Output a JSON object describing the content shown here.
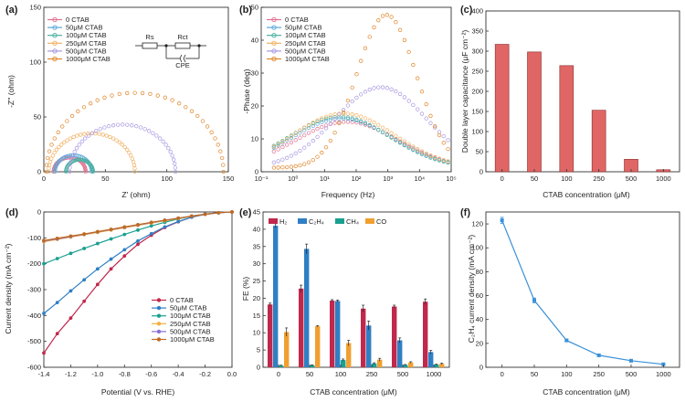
{
  "chart_data": [
    {
      "panel": "(a)",
      "type": "scatter",
      "xlabel": "Z' (ohm)",
      "ylabel": "-Z'' (ohm)",
      "xlim": [
        0,
        150
      ],
      "ylim": [
        0,
        150
      ],
      "xticks": [
        0,
        50,
        100,
        150
      ],
      "yticks": [
        0,
        50,
        100,
        150
      ],
      "inset_labels": [
        "Rs",
        "Rct",
        "CPE"
      ],
      "series": [
        {
          "name": "0 CTAB",
          "color": "#e07090",
          "center": 21,
          "radius": 13
        },
        {
          "name": "50μM CTAB",
          "color": "#5aa8d8",
          "center": 24,
          "radius": 15
        },
        {
          "name": "100μM CTAB",
          "color": "#4ab0a0",
          "center": 29,
          "radius": 11
        },
        {
          "name": "250μM CTAB",
          "color": "#f0b060",
          "center": 39,
          "radius": 35
        },
        {
          "name": "500μM CTAB",
          "color": "#a898e0",
          "center": 64,
          "radius": 43
        },
        {
          "name": "1000μM CTAB",
          "color": "#e0862a",
          "center": 74,
          "radius": 72
        }
      ]
    },
    {
      "panel": "(b)",
      "type": "scatter",
      "xlabel": "Frequency (Hz)",
      "ylabel": "-Phase (deg)",
      "xscale": "log",
      "xlim": [
        0.1,
        100000
      ],
      "ylim": [
        0,
        50
      ],
      "xticks": [
        "10⁻¹",
        "10⁰",
        "10¹",
        "10²",
        "10³",
        "10⁴",
        "10⁵"
      ],
      "yticks": [
        0,
        10,
        20,
        30,
        40,
        50
      ],
      "series": [
        {
          "name": "0 CTAB",
          "color": "#e07090",
          "peak_freq": 50,
          "peak_phase": 14
        },
        {
          "name": "50μM CTAB",
          "color": "#5aa8d8",
          "peak_freq": 35,
          "peak_phase": 15
        },
        {
          "name": "100μM CTAB",
          "color": "#4ab0a0",
          "peak_freq": 30,
          "peak_phase": 15.5
        },
        {
          "name": "250μM CTAB",
          "color": "#f0b060",
          "peak_freq": 40,
          "peak_phase": 16.5
        },
        {
          "name": "500μM CTAB",
          "color": "#a898e0",
          "peak_freq": 600,
          "peak_phase": 24.5
        },
        {
          "name": "1000μM CTAB",
          "color": "#e0862a",
          "peak_freq": 900,
          "peak_phase": 46.5
        }
      ]
    },
    {
      "panel": "(c)",
      "type": "bar",
      "xlabel": "CTAB concentration (μM)",
      "ylabel": "Double layer capacitance (μF cm⁻²)",
      "ylim": [
        0,
        400
      ],
      "yticks": [
        0,
        50,
        100,
        150,
        200,
        250,
        300,
        350,
        400
      ],
      "categories": [
        "0",
        "50",
        "100",
        "250",
        "500",
        "1000"
      ],
      "values": [
        317,
        298,
        264,
        153,
        31,
        5
      ],
      "color": "#e06666"
    },
    {
      "panel": "(d)",
      "type": "line",
      "xlabel": "Potential (V vs. RHE)",
      "ylabel": "Current density (mA cm⁻²)",
      "xlim": [
        -1.4,
        0.0
      ],
      "ylim": [
        -600,
        0
      ],
      "xticks": [
        -1.4,
        -1.2,
        -1.0,
        -0.8,
        -0.6,
        -0.4,
        -0.2,
        0.0
      ],
      "yticks": [
        0,
        -100,
        -200,
        -300,
        -400,
        -500,
        -600
      ],
      "series": [
        {
          "name": "0 CTAB",
          "color": "#c0284c",
          "x": [
            -1.4,
            -1.3,
            -1.2,
            -1.1,
            -1.0,
            -0.9,
            -0.8,
            -0.7,
            -0.6,
            -0.5,
            -0.4,
            -0.3,
            -0.2,
            -0.1,
            0.0
          ],
          "y": [
            -545,
            -470,
            -410,
            -345,
            -280,
            -220,
            -170,
            -125,
            -90,
            -60,
            -38,
            -20,
            -9,
            -3,
            0
          ]
        },
        {
          "name": "50μM CTAB",
          "color": "#2f7fc4",
          "x": [
            -1.4,
            -1.3,
            -1.2,
            -1.1,
            -1.0,
            -0.9,
            -0.8,
            -0.7,
            -0.6,
            -0.5,
            -0.4,
            -0.3,
            -0.2,
            -0.1,
            0.0
          ],
          "y": [
            -392,
            -350,
            -305,
            -262,
            -220,
            -182,
            -146,
            -112,
            -84,
            -58,
            -37,
            -20,
            -9,
            -3,
            0
          ]
        },
        {
          "name": "100μM CTAB",
          "color": "#1aa090",
          "x": [
            -1.4,
            -1.3,
            -1.2,
            -1.1,
            -1.0,
            -0.9,
            -0.8,
            -0.7,
            -0.6,
            -0.5,
            -0.4,
            -0.3,
            -0.2,
            -0.1,
            0.0
          ],
          "y": [
            -200,
            -180,
            -160,
            -141,
            -122,
            -104,
            -87,
            -70,
            -54,
            -40,
            -27,
            -16,
            -8,
            -3,
            0
          ]
        },
        {
          "name": "250μM CTAB",
          "color": "#f0b040",
          "x": [
            -1.4,
            -1.3,
            -1.2,
            -1.1,
            -1.0,
            -0.9,
            -0.8,
            -0.7,
            -0.6,
            -0.5,
            -0.4,
            -0.3,
            -0.2,
            -0.1,
            0.0
          ],
          "y": [
            -115,
            -106,
            -97,
            -88,
            -79,
            -70,
            -61,
            -52,
            -43,
            -34,
            -25,
            -16,
            -9,
            -3,
            0
          ]
        },
        {
          "name": "500μM CTAB",
          "color": "#8a70d0",
          "x": [
            -1.4,
            -1.3,
            -1.2,
            -1.1,
            -1.0,
            -0.9,
            -0.8,
            -0.7,
            -0.6,
            -0.5,
            -0.4,
            -0.3,
            -0.2,
            -0.1,
            0.0
          ],
          "y": [
            -112,
            -104,
            -95,
            -86,
            -77,
            -68,
            -59,
            -50,
            -41,
            -32,
            -24,
            -16,
            -9,
            -3,
            0
          ]
        },
        {
          "name": "1000μM CTAB",
          "color": "#c06a20",
          "x": [
            -1.4,
            -1.3,
            -1.2,
            -1.1,
            -1.0,
            -0.9,
            -0.8,
            -0.7,
            -0.6,
            -0.5,
            -0.4,
            -0.3,
            -0.2,
            -0.1,
            0.0
          ],
          "y": [
            -110,
            -102,
            -93,
            -85,
            -76,
            -67,
            -58,
            -49,
            -40,
            -32,
            -24,
            -16,
            -9,
            -3,
            0
          ]
        }
      ]
    },
    {
      "panel": "(e)",
      "type": "bar",
      "xlabel": "CTAB concentration (μM)",
      "ylabel": "FE (%)",
      "ylim": [
        0,
        45
      ],
      "yticks": [
        0,
        5,
        10,
        15,
        20,
        25,
        30,
        35,
        40,
        45
      ],
      "categories": [
        "0",
        "50",
        "100",
        "250",
        "500",
        "1000"
      ],
      "series": [
        {
          "name": "H₂",
          "color": "#c0284c",
          "values": [
            18.2,
            22.8,
            19.3,
            17.0,
            17.6,
            19.0
          ],
          "errors": [
            0.4,
            1.0,
            0.3,
            1.0,
            0.4,
            0.8
          ]
        },
        {
          "name": "C₂H₄",
          "color": "#2f7fc4",
          "values": [
            41.0,
            34.3,
            19.2,
            12.1,
            7.8,
            4.4
          ],
          "errors": [
            0.6,
            1.4,
            0.3,
            1.3,
            0.7,
            0.5
          ]
        },
        {
          "name": "CH₄",
          "color": "#1aa090",
          "values": [
            0.5,
            0.6,
            2.1,
            1.1,
            0.7,
            0.8
          ],
          "errors": [
            0.1,
            0.1,
            0.3,
            0.2,
            0.1,
            0.1
          ]
        },
        {
          "name": "CO",
          "color": "#f0a030",
          "values": [
            10.2,
            11.9,
            7.0,
            2.2,
            1.4,
            1.0
          ],
          "errors": [
            1.2,
            0.2,
            0.8,
            0.4,
            0.2,
            0.2
          ]
        }
      ]
    },
    {
      "panel": "(f)",
      "type": "line",
      "xlabel": "CTAB concentration (μM)",
      "ylabel": "C₂H₄ current density (mA cm⁻²)",
      "ylim": [
        0,
        130
      ],
      "yticks": [
        0,
        20,
        40,
        60,
        80,
        100,
        120
      ],
      "categories": [
        "0",
        "50",
        "100",
        "250",
        "500",
        "1000"
      ],
      "values": [
        123,
        56,
        22.5,
        10,
        5.5,
        2.5
      ],
      "errors": [
        2.5,
        2,
        1,
        0.8,
        0.5,
        0.4
      ],
      "color": "#3a90d8"
    }
  ]
}
